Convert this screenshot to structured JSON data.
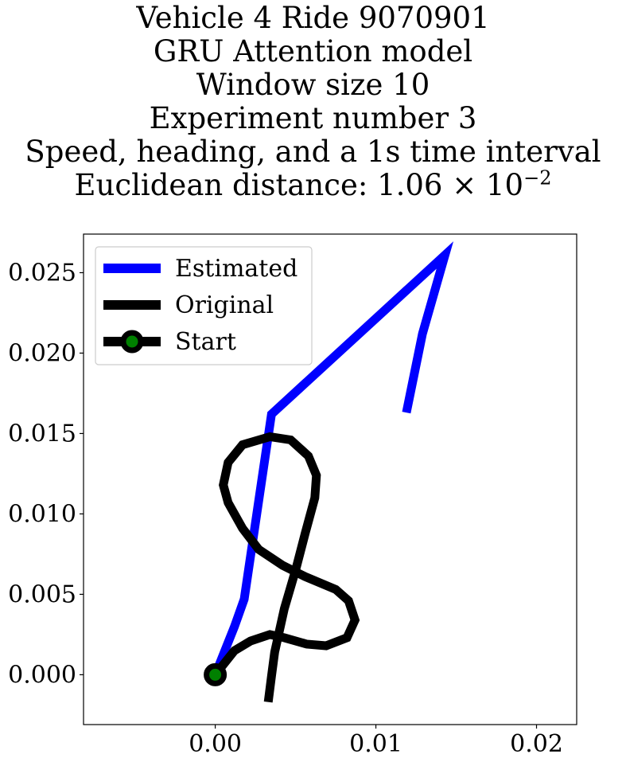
{
  "chart_data": {
    "type": "line",
    "title_lines": [
      "Vehicle 4 Ride 9070901",
      "GRU Attention model",
      "Window size 10",
      "Experiment number 3",
      "Speed, heading, and a 1s time interval"
    ],
    "distance_label": "Euclidean distance: 1.06 × 10",
    "distance_exponent": "−2",
    "xlim": [
      -0.0082,
      0.0225
    ],
    "ylim": [
      -0.0031,
      0.0274
    ],
    "xticks": [
      0.0,
      0.01,
      0.02
    ],
    "xtick_labels": [
      "0.00",
      "0.01",
      "0.02"
    ],
    "yticks": [
      0.0,
      0.005,
      0.01,
      0.015,
      0.02,
      0.025
    ],
    "ytick_labels": [
      "0.000",
      "0.005",
      "0.010",
      "0.015",
      "0.020",
      "0.025"
    ],
    "legend_position": "upper-left",
    "series": [
      {
        "name": "Estimated",
        "color": "#0000ff",
        "points": [
          [
            0.0,
            0.0
          ],
          [
            0.0012,
            0.003
          ],
          [
            0.0018,
            0.0047
          ],
          [
            0.0035,
            0.0162
          ],
          [
            0.0143,
            0.0261
          ],
          [
            0.0129,
            0.0212
          ],
          [
            0.0119,
            0.0163
          ]
        ]
      },
      {
        "name": "Original",
        "color": "#000000",
        "points": [
          [
            0.0,
            0.0
          ],
          [
            0.0012,
            0.0015
          ],
          [
            0.0022,
            0.0021
          ],
          [
            0.0034,
            0.0025
          ],
          [
            0.0043,
            0.0023
          ],
          [
            0.0057,
            0.0019
          ],
          [
            0.0069,
            0.0018
          ],
          [
            0.0082,
            0.0023
          ],
          [
            0.0087,
            0.0034
          ],
          [
            0.0083,
            0.0046
          ],
          [
            0.0075,
            0.0053
          ],
          [
            0.0056,
            0.0061
          ],
          [
            0.0042,
            0.0068
          ],
          [
            0.0027,
            0.0078
          ],
          [
            0.0017,
            0.0091
          ],
          [
            0.0008,
            0.0107
          ],
          [
            0.0005,
            0.0118
          ],
          [
            0.0008,
            0.0132
          ],
          [
            0.0017,
            0.0143
          ],
          [
            0.0034,
            0.0148
          ],
          [
            0.0047,
            0.0146
          ],
          [
            0.0058,
            0.0136
          ],
          [
            0.0063,
            0.0124
          ],
          [
            0.0062,
            0.011
          ],
          [
            0.0056,
            0.0088
          ],
          [
            0.005,
            0.0065
          ],
          [
            0.0043,
            0.0041
          ],
          [
            0.0037,
            0.0014
          ],
          [
            0.0035,
            -0.0001
          ],
          [
            0.0033,
            -0.0017
          ]
        ]
      }
    ],
    "start_marker": {
      "name": "Start",
      "x": 0.0,
      "y": 0.0,
      "edge_color": "#000000",
      "fill_color": "#008000"
    }
  }
}
